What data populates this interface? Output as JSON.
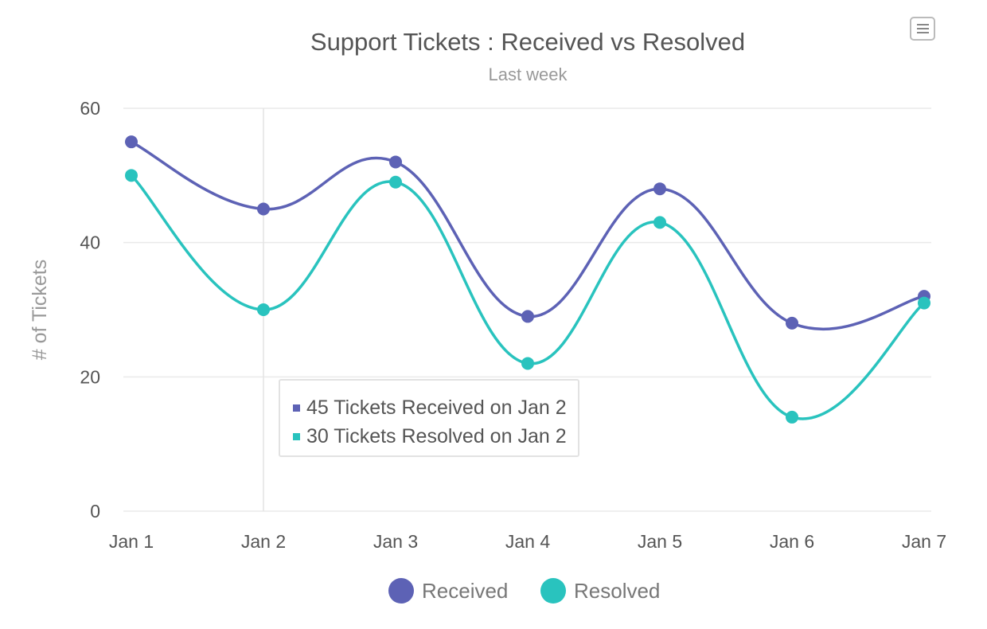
{
  "chart_data": {
    "type": "line",
    "title": "Support Tickets : Received vs Resolved",
    "subtitle": "Last week",
    "xlabel": "",
    "ylabel": "# of Tickets",
    "categories": [
      "Jan 1",
      "Jan 2",
      "Jan 3",
      "Jan 4",
      "Jan 5",
      "Jan 6",
      "Jan 7"
    ],
    "ylim": [
      0,
      60
    ],
    "yticks": [
      0,
      20,
      40,
      60
    ],
    "grid": true,
    "smooth": true,
    "legend_position": "bottom",
    "series": [
      {
        "name": "Received",
        "color": "#5d62b5",
        "values": [
          55,
          45,
          52,
          29,
          48,
          28,
          32
        ]
      },
      {
        "name": "Resolved",
        "color": "#29c3be",
        "values": [
          50,
          30,
          49,
          22,
          43,
          14,
          31
        ]
      }
    ],
    "hover_category": "Jan 2"
  },
  "tooltip": {
    "rows": [
      {
        "value": "45",
        "text": " Tickets Received on ",
        "date": "Jan 2"
      },
      {
        "value": "30",
        "text": " Tickets Resolved on ",
        "date": "Jan 2"
      }
    ]
  },
  "menu_icon": "hamburger-menu-icon"
}
